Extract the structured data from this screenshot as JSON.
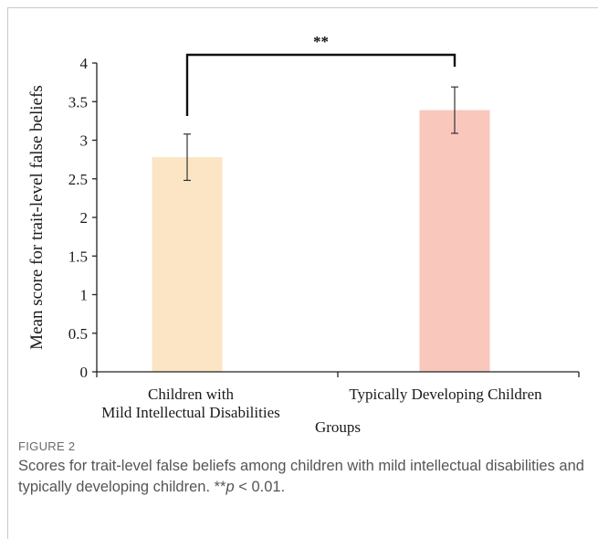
{
  "chart_data": {
    "type": "bar",
    "categories": [
      [
        "Children with",
        "Mild Intellectual Disabilities"
      ],
      [
        "Typically Developing Children"
      ]
    ],
    "values": [
      2.78,
      3.39
    ],
    "error_bars": [
      {
        "low": 2.48,
        "high": 3.08
      },
      {
        "low": 3.09,
        "high": 3.69
      }
    ],
    "bar_colors": [
      "#fce5c4",
      "#f9c7bc"
    ],
    "xlabel": "Groups",
    "ylabel": "Mean score for trait-level false beliefs",
    "ylim": [
      0,
      4
    ],
    "yticks": [
      "0",
      "0.5",
      "1",
      "1.5",
      "2",
      "2.5",
      "3",
      "3.5",
      "4"
    ],
    "significance": {
      "label": "**",
      "between": [
        0,
        1
      ]
    },
    "grid": false,
    "legend": "none"
  },
  "caption": {
    "label": "FIGURE 2",
    "text": "Scores for trait-level false beliefs among children with mild intellectual disabilities and typically developing children. **",
    "p_italic": "p",
    "p_rest": " < 0.01."
  }
}
